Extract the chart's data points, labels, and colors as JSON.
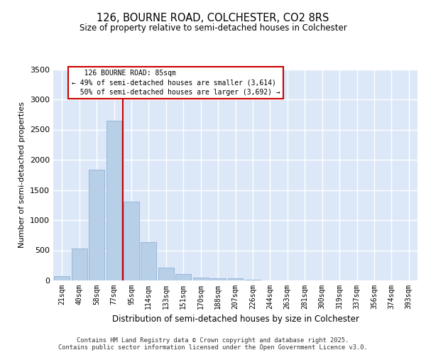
{
  "title1": "126, BOURNE ROAD, COLCHESTER, CO2 8RS",
  "title2": "Size of property relative to semi-detached houses in Colchester",
  "xlabel": "Distribution of semi-detached houses by size in Colchester",
  "ylabel": "Number of semi-detached properties",
  "categories": [
    "21sqm",
    "40sqm",
    "58sqm",
    "77sqm",
    "95sqm",
    "114sqm",
    "133sqm",
    "151sqm",
    "170sqm",
    "188sqm",
    "207sqm",
    "226sqm",
    "244sqm",
    "263sqm",
    "281sqm",
    "300sqm",
    "319sqm",
    "337sqm",
    "356sqm",
    "374sqm",
    "393sqm"
  ],
  "values": [
    70,
    530,
    1840,
    2650,
    1310,
    640,
    210,
    110,
    50,
    40,
    30,
    10,
    5,
    3,
    2,
    1,
    0,
    0,
    0,
    0,
    0
  ],
  "bar_color": "#b8cfe8",
  "bar_edge_color": "#8fb0d8",
  "red_line_x": 3.5,
  "property_label": "126 BOURNE ROAD: 85sqm",
  "smaller_pct": "49%",
  "smaller_count": "3,614",
  "larger_pct": "50%",
  "larger_count": "3,692",
  "red_color": "#cc0000",
  "ylim": [
    0,
    3500
  ],
  "yticks": [
    0,
    500,
    1000,
    1500,
    2000,
    2500,
    3000,
    3500
  ],
  "bg_color": "#dce8f8",
  "footer1": "Contains HM Land Registry data © Crown copyright and database right 2025.",
  "footer2": "Contains public sector information licensed under the Open Government Licence v3.0."
}
